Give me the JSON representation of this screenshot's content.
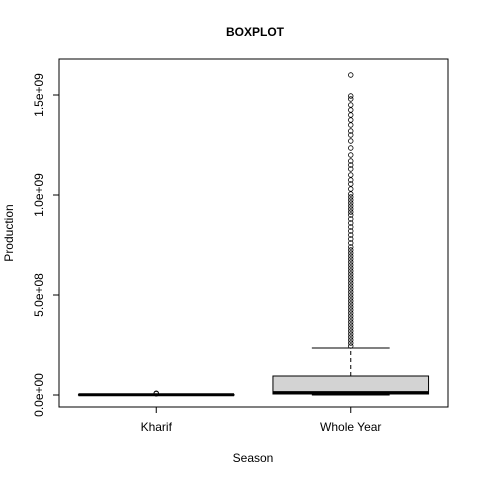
{
  "chart_data": {
    "type": "boxplot",
    "title": "BOXPLOT",
    "xlabel": "Season",
    "ylabel": "Production",
    "categories": [
      "Kharif",
      "Whole Year"
    ],
    "y_ticks": [
      0,
      500000000,
      1000000000,
      1500000000
    ],
    "y_tick_labels": [
      "0.0e+00",
      "5.0e+08",
      "1.0e+09",
      "1.5e+09"
    ],
    "ylim": [
      -60000000,
      1680000000
    ],
    "boxes": [
      {
        "category": "Kharif",
        "min": 0,
        "q1": 0,
        "median": 1000000,
        "q3": 2000000,
        "max": 4000000,
        "outliers": [
          6000000,
          9000000
        ]
      },
      {
        "category": "Whole Year",
        "min": 0,
        "q1": 5000000,
        "median": 12000000,
        "q3": 95000000,
        "max": 235000000,
        "outliers": [
          245000000,
          260000000,
          275000000,
          290000000,
          305000000,
          320000000,
          335000000,
          350000000,
          365000000,
          380000000,
          395000000,
          410000000,
          425000000,
          440000000,
          455000000,
          470000000,
          485000000,
          500000000,
          515000000,
          530000000,
          545000000,
          560000000,
          575000000,
          590000000,
          605000000,
          620000000,
          635000000,
          650000000,
          665000000,
          680000000,
          695000000,
          710000000,
          725000000,
          740000000,
          760000000,
          780000000,
          800000000,
          820000000,
          840000000,
          860000000,
          880000000,
          900000000,
          915000000,
          930000000,
          945000000,
          960000000,
          975000000,
          990000000,
          1005000000,
          1030000000,
          1055000000,
          1075000000,
          1100000000,
          1130000000,
          1150000000,
          1170000000,
          1200000000,
          1235000000,
          1270000000,
          1300000000,
          1320000000,
          1350000000,
          1375000000,
          1400000000,
          1425000000,
          1450000000,
          1480000000,
          1495000000,
          1600000000
        ]
      }
    ],
    "box_fill": "#d3d3d3",
    "grid": false
  }
}
